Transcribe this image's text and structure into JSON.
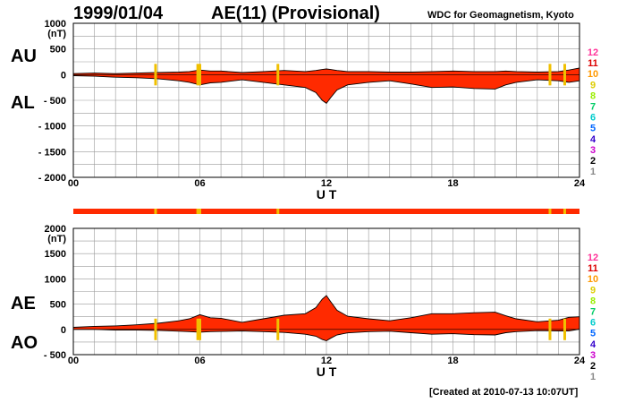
{
  "header": {
    "date": "1999/01/04",
    "title": "AE(11) (Provisional)",
    "source": "WDC for Geomagnetism, Kyoto"
  },
  "footer": {
    "created": "[Created at 2010-07-13 10:07UT]"
  },
  "colors": {
    "fill": "#ff2a00",
    "station_marks": "#f0c000",
    "grid": "#999999",
    "scale": [
      "#ff3399",
      "#dd0000",
      "#ff9900",
      "#ddcc00",
      "#99ee00",
      "#00cc66",
      "#00cccc",
      "#0066ff",
      "#3300cc",
      "#cc00cc",
      "#000000",
      "#888888",
      "#bbbbbb"
    ]
  },
  "station_count_scale": [
    "12",
    "11",
    "10",
    "9",
    "8",
    "7",
    "6",
    "5",
    "4",
    "3",
    "2",
    "1"
  ],
  "chart_data": [
    {
      "type": "area",
      "panel": "AU/AL",
      "series_labels": [
        "AU",
        "AL"
      ],
      "unit": "(nT)",
      "xlabel": "U T",
      "x_ticks": [
        "00",
        "06",
        "12",
        "18",
        "24"
      ],
      "xlim": [
        0,
        24
      ],
      "ylim": [
        -2000,
        1000
      ],
      "y_ticks": [
        "1000",
        "500",
        "0",
        "- 500",
        "- 1000",
        "- 1500",
        "- 2000"
      ],
      "y_tick_values": [
        1000,
        500,
        0,
        -500,
        -1000,
        -1500,
        -2000
      ],
      "grid": true,
      "x": [
        0,
        1,
        2,
        3,
        4,
        5,
        5.5,
        6,
        6.5,
        7,
        8,
        9,
        10,
        11,
        11.5,
        11.8,
        12,
        12.2,
        12.5,
        13,
        14,
        15,
        16,
        17,
        18,
        19,
        20,
        20.5,
        21,
        22,
        23,
        23.5,
        24
      ],
      "series": [
        {
          "name": "AU",
          "values": [
            20,
            30,
            20,
            30,
            40,
            50,
            60,
            90,
            70,
            70,
            40,
            60,
            80,
            60,
            80,
            100,
            110,
            100,
            80,
            60,
            60,
            50,
            50,
            60,
            70,
            60,
            60,
            70,
            60,
            50,
            60,
            90,
            130
          ]
        },
        {
          "name": "AL",
          "values": [
            -20,
            -30,
            -50,
            -60,
            -80,
            -120,
            -150,
            -200,
            -160,
            -150,
            -100,
            -150,
            -200,
            -250,
            -350,
            -500,
            -560,
            -450,
            -300,
            -200,
            -150,
            -120,
            -180,
            -250,
            -240,
            -270,
            -280,
            -200,
            -150,
            -100,
            -120,
            -150,
            -120
          ]
        }
      ],
      "station_marks_ut": [
        3.9,
        5.9,
        6.0,
        9.7,
        22.6,
        23.3
      ]
    },
    {
      "type": "area",
      "panel": "AE/AO",
      "series_labels": [
        "AE",
        "AO"
      ],
      "unit": "(nT)",
      "xlabel": "U T",
      "x_ticks": [
        "00",
        "06",
        "12",
        "18",
        "24"
      ],
      "xlim": [
        0,
        24
      ],
      "ylim": [
        -500,
        2000
      ],
      "y_ticks": [
        "2000",
        "1500",
        "1000",
        "500",
        "0",
        "- 500"
      ],
      "y_tick_values": [
        2000,
        1500,
        1000,
        500,
        0,
        -500
      ],
      "grid": true,
      "x": [
        0,
        1,
        2,
        3,
        4,
        5,
        5.5,
        6,
        6.5,
        7,
        8,
        9,
        10,
        11,
        11.5,
        11.8,
        12,
        12.2,
        12.5,
        13,
        14,
        15,
        16,
        17,
        18,
        19,
        20,
        20.5,
        21,
        22,
        23,
        23.5,
        24
      ],
      "series": [
        {
          "name": "AE",
          "values": [
            40,
            60,
            70,
            90,
            120,
            170,
            210,
            290,
            230,
            220,
            140,
            210,
            280,
            310,
            430,
            600,
            670,
            550,
            380,
            260,
            210,
            170,
            230,
            310,
            310,
            330,
            340,
            270,
            210,
            150,
            180,
            240,
            250
          ]
        },
        {
          "name": "AO",
          "values": [
            0,
            0,
            -15,
            -15,
            -20,
            -35,
            -45,
            -55,
            -45,
            -40,
            -30,
            -45,
            -60,
            -95,
            -135,
            -200,
            -225,
            -175,
            -110,
            -70,
            -45,
            -35,
            -65,
            -95,
            -85,
            -105,
            -110,
            -65,
            -45,
            -25,
            -30,
            -30,
            5
          ]
        }
      ],
      "station_marks_ut": [
        3.9,
        5.9,
        6.0,
        9.7,
        22.6,
        23.3
      ]
    }
  ],
  "station_bar": {
    "marks_ut": [
      3.9,
      5.9,
      6.0,
      9.7,
      22.6,
      23.3
    ]
  }
}
